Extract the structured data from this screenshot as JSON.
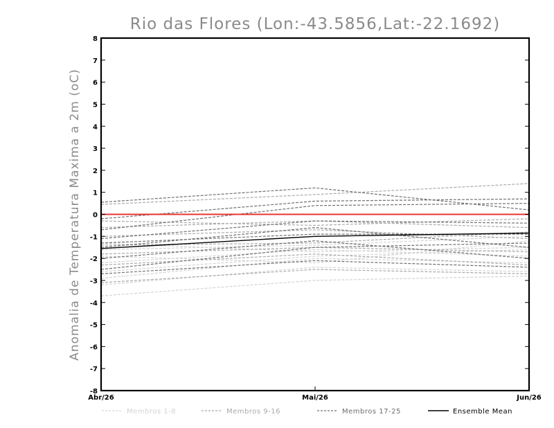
{
  "chart_data": {
    "type": "line",
    "title": "Rio das Flores (Lon:-43.5856,Lat:-22.1692)",
    "ylabel": "Anomalia de Temperatura Maxima a 2m (oC)",
    "xlabel": "",
    "categories": [
      "Abr/26",
      "Mai/26",
      "Jun/26"
    ],
    "ylim": [
      -8,
      8
    ],
    "yticks": [
      "8",
      "7",
      "6",
      "5",
      "4",
      "3",
      "2",
      "1",
      "0",
      "-1",
      "-2",
      "-3",
      "-4",
      "-5",
      "-6",
      "-7",
      "-8"
    ],
    "grid": false,
    "reference_line": {
      "value": 0,
      "color": "#e8342f"
    },
    "groups": [
      {
        "name": "Membros 1-8",
        "color": "#d3d3d3",
        "dash": true,
        "series": [
          [
            -3.7,
            -3.0,
            -2.8
          ],
          [
            -3.2,
            -2.4,
            -2.6
          ],
          [
            -2.9,
            -2.0,
            -2.2
          ],
          [
            -2.6,
            -1.9,
            -1.6
          ],
          [
            -2.2,
            -1.6,
            -1.9
          ],
          [
            -1.9,
            -2.2,
            -1.2
          ],
          [
            -1.6,
            -1.4,
            -1.0
          ],
          [
            -1.3,
            -1.7,
            -1.5
          ]
        ]
      },
      {
        "name": "Membros 9-16",
        "color": "#a9a9a9",
        "dash": true,
        "series": [
          [
            0.45,
            0.9,
            1.4
          ],
          [
            -0.3,
            -0.5,
            -0.2
          ],
          [
            -0.6,
            -0.3,
            -0.6
          ],
          [
            -1.0,
            -0.7,
            -1.1
          ],
          [
            -1.4,
            -1.3,
            -0.8
          ],
          [
            -1.8,
            -1.5,
            -1.7
          ],
          [
            -2.3,
            -1.8,
            -2.3
          ],
          [
            -3.1,
            -2.5,
            -2.7
          ]
        ]
      },
      {
        "name": "Membros 17-25",
        "color": "#6e6e6e",
        "dash": true,
        "series": [
          [
            0.55,
            1.2,
            0.2
          ],
          [
            -0.2,
            0.6,
            0.7
          ],
          [
            -0.7,
            0.4,
            0.5
          ],
          [
            -1.1,
            -0.3,
            -0.4
          ],
          [
            -1.3,
            -0.9,
            -0.9
          ],
          [
            -1.5,
            -0.6,
            -1.5
          ],
          [
            -2.0,
            -1.2,
            -2.0
          ],
          [
            -2.5,
            -1.5,
            -1.3
          ],
          [
            -2.7,
            -2.1,
            -2.4
          ]
        ]
      },
      {
        "name": "Ensemble Mean",
        "color": "#000000",
        "dash": false,
        "series": [
          [
            -1.55,
            -1.0,
            -0.85
          ]
        ]
      }
    ],
    "legend": [
      {
        "label": "Membros 1-8",
        "color": "#d3d3d3",
        "dash": true
      },
      {
        "label": "Membros 9-16",
        "color": "#a9a9a9",
        "dash": true
      },
      {
        "label": "Membros 17-25",
        "color": "#6e6e6e",
        "dash": true
      },
      {
        "label": "Ensemble Mean",
        "color": "#000000",
        "dash": false
      }
    ],
    "legend_position": "bottom"
  }
}
